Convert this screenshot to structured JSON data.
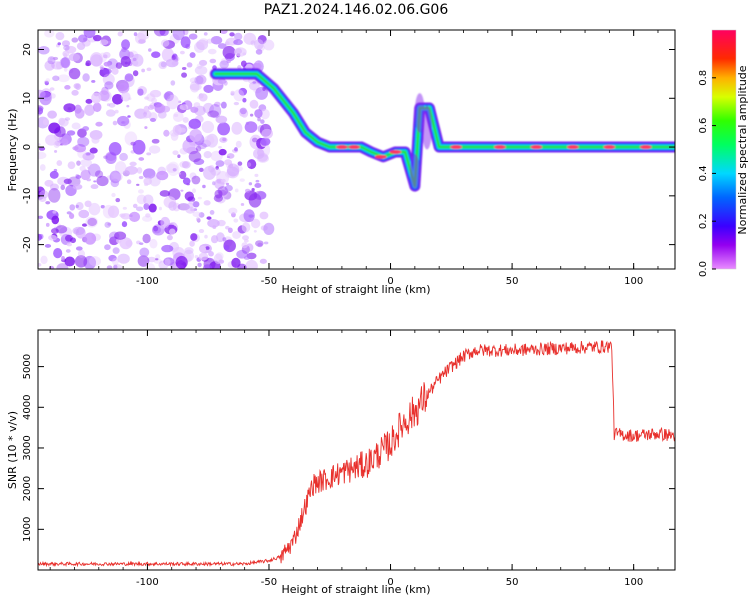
{
  "title": "PAZ1.2024.146.02.06.G06",
  "chart_data": [
    {
      "type": "heatmap",
      "xlabel": "Height of straight line (km)",
      "ylabel": "Frequency (Hz)",
      "xlim": [
        -145,
        117
      ],
      "ylim": [
        -25,
        24
      ],
      "xticks": [
        -100,
        -50,
        0,
        50,
        100
      ],
      "yticks": [
        -20,
        -10,
        0,
        10,
        20
      ],
      "colorbar": {
        "label": "Normalized spectral amplitude",
        "range": [
          0.0,
          1.0
        ],
        "ticks": [
          0.0,
          0.2,
          0.4,
          0.6,
          0.8
        ]
      },
      "ridge": [
        {
          "x": -72,
          "y": 15
        },
        {
          "x": -55,
          "y": 15
        },
        {
          "x": -48,
          "y": 12
        },
        {
          "x": -40,
          "y": 7
        },
        {
          "x": -35,
          "y": 3
        },
        {
          "x": -30,
          "y": 1
        },
        {
          "x": -25,
          "y": 0
        },
        {
          "x": -12,
          "y": 0
        },
        {
          "x": -8,
          "y": -1
        },
        {
          "x": -3,
          "y": -2
        },
        {
          "x": 2,
          "y": -1
        },
        {
          "x": 6,
          "y": -1
        },
        {
          "x": 10,
          "y": -8
        },
        {
          "x": 12,
          "y": 8
        },
        {
          "x": 16,
          "y": 8
        },
        {
          "x": 20,
          "y": 0
        },
        {
          "x": 117,
          "y": 0
        }
      ]
    },
    {
      "type": "line",
      "xlabel": "Height of straight line (km)",
      "ylabel": "SNR (10 * v/v)",
      "xlim": [
        -145,
        117
      ],
      "ylim": [
        0,
        5900
      ],
      "xticks": [
        -100,
        -50,
        0,
        50,
        100
      ],
      "yticks": [
        1000,
        2000,
        3000,
        4000,
        5000
      ],
      "series_color": "#e8302c",
      "points": [
        {
          "x": -145,
          "y": 150
        },
        {
          "x": -60,
          "y": 150
        },
        {
          "x": -50,
          "y": 230
        },
        {
          "x": -45,
          "y": 330
        },
        {
          "x": -40,
          "y": 700
        },
        {
          "x": -36,
          "y": 1400
        },
        {
          "x": -32,
          "y": 2100
        },
        {
          "x": -28,
          "y": 2200
        },
        {
          "x": -20,
          "y": 2400
        },
        {
          "x": -10,
          "y": 2600
        },
        {
          "x": 0,
          "y": 3100
        },
        {
          "x": 5,
          "y": 3600
        },
        {
          "x": 10,
          "y": 3900
        },
        {
          "x": 15,
          "y": 4300
        },
        {
          "x": 20,
          "y": 4700
        },
        {
          "x": 25,
          "y": 5000
        },
        {
          "x": 30,
          "y": 5250
        },
        {
          "x": 35,
          "y": 5400
        },
        {
          "x": 50,
          "y": 5400
        },
        {
          "x": 70,
          "y": 5450
        },
        {
          "x": 91,
          "y": 5500
        },
        {
          "x": 92,
          "y": 3350
        },
        {
          "x": 100,
          "y": 3300
        },
        {
          "x": 110,
          "y": 3350
        },
        {
          "x": 117,
          "y": 3300
        }
      ]
    }
  ]
}
